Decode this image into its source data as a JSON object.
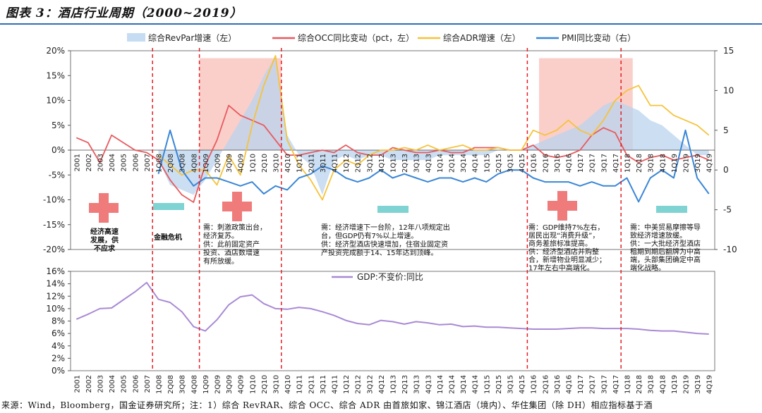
{
  "title": "图表 3：酒店行业周期（2000~2019）",
  "source": "来源：Wind，Bloomberg，国金证券研究所；注：1）综合 RevRAR、综合 OCC、综合 ADR 由首旅如家、锦江酒店（境内）、华住集团（除 DH）相应指标基于酒",
  "colors": {
    "revpar": "#c6dcf2",
    "occ": "#e8595e",
    "adr": "#f5c33b",
    "pmi": "#3a86d6",
    "gdp": "#a98ad4",
    "divider": "#e31e24",
    "shade": "#f9c7c1",
    "cross": "#ef7b7b",
    "bar": "#7fd3d3"
  },
  "chart_data": [
    {
      "type": "line",
      "x": [
        "2001",
        "2002",
        "2003",
        "2004",
        "2005",
        "2006",
        "2007",
        "1Q08",
        "2Q08",
        "3Q08",
        "4Q08",
        "1Q09",
        "2Q09",
        "3Q09",
        "4Q09",
        "1Q10",
        "2Q10",
        "3Q10",
        "4Q10",
        "1Q11",
        "2Q11",
        "3Q11",
        "4Q11",
        "1Q12",
        "2Q12",
        "3Q12",
        "4Q12",
        "1Q13",
        "2Q13",
        "3Q13",
        "4Q13",
        "1Q14",
        "2Q14",
        "3Q14",
        "4Q14",
        "1Q15",
        "2Q15",
        "3Q15",
        "4Q15",
        "1Q16",
        "2Q16",
        "3Q16",
        "4Q16",
        "1Q17",
        "2Q17",
        "3Q17",
        "4Q17",
        "1Q18",
        "2Q18",
        "3Q18",
        "4Q18",
        "1Q19",
        "2Q19",
        "3Q19",
        "4Q19"
      ],
      "xlabel_bottom_ticks": [
        "2001",
        "2002",
        "2003",
        "2004",
        "2005",
        "2006",
        "2007",
        "1Q08",
        "2Q08",
        "3Q08",
        "4Q08",
        "1Q09",
        "2Q09",
        "3Q09",
        "4Q09",
        "1Q10",
        "2Q10",
        "3Q10",
        "4Q10",
        "1Q11",
        "2Q11",
        "3Q11",
        "4Q11",
        "1Q12",
        "2Q12",
        "3Q12",
        "4Q12",
        "1Q13",
        "2Q13",
        "3Q13",
        "4Q13",
        "1Q14",
        "2Q14",
        "3Q14",
        "4Q14",
        "1Q15",
        "2Q15",
        "3Q15",
        "4Q15",
        "1Q16",
        "2Q16",
        "3Q16",
        "4Q16",
        "1Q17",
        "2Q17",
        "3Q17",
        "4Q17",
        "1Q18",
        "2Q18",
        "3Q18",
        "4Q18",
        "1Q19",
        "2Q19",
        "3Q19",
        "4Q19"
      ],
      "ylim_left": [
        -20,
        20
      ],
      "yticks_left": [
        "20%",
        "15%",
        "10%",
        "5%",
        "0%",
        "-5%",
        "-10%",
        "-15%",
        "-20%"
      ],
      "ylim_right": [
        -10,
        15
      ],
      "yticks_right": [
        "15",
        "10",
        "5",
        "0",
        "-5",
        "-10"
      ],
      "series": [
        {
          "name": "综合RevPar增速（左）",
          "axis": "left",
          "style": "area",
          "values": [
            null,
            null,
            null,
            null,
            null,
            null,
            null,
            -2,
            -7,
            -8,
            -9,
            -6,
            -2,
            2,
            6,
            10,
            15,
            19,
            3,
            -1,
            -3,
            -9,
            -2,
            -1,
            -2,
            -1,
            -1,
            -2,
            -2,
            -2,
            -2,
            -1,
            -1,
            -1,
            -1,
            -1,
            0,
            0,
            0,
            1,
            2,
            3,
            4,
            5,
            7,
            9,
            10,
            9,
            8,
            6,
            5,
            3,
            1,
            -1,
            -1
          ]
        },
        {
          "name": "综合OCC同比变动（pct，左）",
          "axis": "left",
          "style": "line",
          "values": [
            2.5,
            1.5,
            -2.5,
            3,
            1.5,
            0,
            -0.5,
            -2,
            -6,
            -9,
            -10.5,
            -3,
            2,
            9,
            7,
            6,
            5,
            2,
            -1,
            -1,
            -0.5,
            0,
            -0.5,
            1,
            -0.5,
            -1,
            -1,
            0.5,
            0,
            -0.5,
            -0.5,
            0,
            -0.5,
            -0.5,
            0.5,
            0.5,
            0.5,
            0,
            0,
            1,
            -1,
            -1.5,
            -1,
            0,
            3,
            4.5,
            3.5,
            -1,
            -2.5,
            -1.5,
            -1,
            -2,
            -1.5,
            -1,
            -2
          ]
        },
        {
          "name": "综合ADR增速（左）",
          "axis": "left",
          "style": "line",
          "values": [
            null,
            null,
            null,
            null,
            null,
            null,
            null,
            -1,
            -3,
            -5,
            -4,
            -4,
            -7,
            -1,
            -5,
            5,
            13,
            19,
            2,
            -3,
            -6,
            -10,
            -4,
            -2,
            -3,
            -1,
            0,
            0,
            0.5,
            0,
            1,
            0,
            0.5,
            1,
            0,
            0,
            0.5,
            0,
            0,
            4,
            3,
            4,
            6,
            4,
            3,
            6,
            10,
            12,
            13,
            9,
            9,
            7,
            6,
            5,
            3
          ]
        },
        {
          "name": "PMI同比变动（右）",
          "axis": "right",
          "style": "line",
          "values": [
            null,
            null,
            null,
            null,
            null,
            null,
            null,
            -0.5,
            5,
            0,
            -2,
            -1,
            -1,
            -1.5,
            -2,
            -1.5,
            -3,
            -2,
            -2.5,
            -1,
            -0.5,
            0.5,
            0,
            -1,
            -1.5,
            -1,
            0,
            -1,
            -0.5,
            -1,
            -1.5,
            -1,
            -1,
            -1.5,
            -1,
            -1.5,
            -0.5,
            0,
            0,
            -1,
            -1.5,
            -1.5,
            -1.5,
            -2,
            -1.5,
            -2,
            -2,
            -1,
            -4,
            -1,
            0,
            -1,
            5,
            -1,
            -3
          ]
        }
      ],
      "regions": [
        {
          "label": "1Q09-3Q10",
          "from": "1Q09",
          "to": "3Q10"
        },
        {
          "label": "2Q16-1Q18",
          "from": "2Q16",
          "to": "1Q18"
        }
      ],
      "dividers_after": [
        "2007",
        "4Q08",
        "3Q10",
        "4Q15",
        "4Q17"
      ],
      "annotations": [
        {
          "id": "a1",
          "lines": [
            "经济高速",
            "发展，供",
            "不应求"
          ]
        },
        {
          "id": "a2",
          "lines": [
            "金融危机"
          ]
        },
        {
          "id": "a3",
          "lines": [
            "需：刺激政策出台，",
            "经济复苏。",
            "供：此前固定资产",
            "投资、酒店数增速",
            "有所放缓。"
          ]
        },
        {
          "id": "a4",
          "lines": [
            "需：经济增速下一台阶，12年八项规定出",
            "台，但GDP仍有7%以上增速。",
            "供：经济型酒店快速增加，住宿业固定资",
            "产投资完成额于14、15年达到顶峰。"
          ]
        },
        {
          "id": "a5",
          "lines": [
            "需：GDP维持7%左右，",
            "居民出现“消费升级”，",
            "商务差旅标准提高。",
            "供：经济型酒店并购整",
            "合，新增物业明显减少；",
            "17年左右中高端化。"
          ]
        },
        {
          "id": "a6",
          "lines": [
            "需：中美贸易摩擦等导",
            "致经济增速放缓。",
            "供：一大批经济型酒店",
            "租期到期后翻牌为中高",
            "端，头部集团确定中高",
            "端化战略。"
          ]
        }
      ]
    },
    {
      "type": "line",
      "x": [
        "2001",
        "2002",
        "2003",
        "2004",
        "2005",
        "2006",
        "2007",
        "1Q08",
        "2Q08",
        "3Q08",
        "4Q08",
        "1Q09",
        "2Q09",
        "3Q09",
        "4Q09",
        "1Q10",
        "2Q10",
        "3Q10",
        "4Q10",
        "1Q11",
        "2Q11",
        "3Q11",
        "4Q11",
        "1Q12",
        "2Q12",
        "3Q12",
        "4Q12",
        "1Q13",
        "2Q13",
        "3Q13",
        "4Q13",
        "1Q14",
        "2Q14",
        "3Q14",
        "4Q14",
        "1Q15",
        "2Q15",
        "3Q15",
        "4Q15",
        "1Q16",
        "2Q16",
        "3Q16",
        "4Q16",
        "1Q17",
        "2Q17",
        "3Q17",
        "4Q17",
        "1Q18",
        "2Q18",
        "3Q18",
        "4Q18",
        "1Q19",
        "2Q19",
        "3Q19",
        "4Q19"
      ],
      "ylim": [
        0,
        16
      ],
      "yticks": [
        "16%",
        "14%",
        "12%",
        "10%",
        "8%",
        "6%",
        "4%",
        "2%",
        "0%"
      ],
      "series": [
        {
          "name": "GDP:不变价:同比",
          "values": [
            8.3,
            9.1,
            10.0,
            10.1,
            11.4,
            12.7,
            14.2,
            11.5,
            11.0,
            9.5,
            7.1,
            6.4,
            8.2,
            10.6,
            11.9,
            12.2,
            10.8,
            10.0,
            9.9,
            10.2,
            10.0,
            9.5,
            8.9,
            8.1,
            7.6,
            7.4,
            8.1,
            7.9,
            7.5,
            7.9,
            7.7,
            7.4,
            7.5,
            7.1,
            7.2,
            7.0,
            7.0,
            6.9,
            6.8,
            6.7,
            6.7,
            6.7,
            6.8,
            6.9,
            6.9,
            6.8,
            6.8,
            6.8,
            6.7,
            6.5,
            6.4,
            6.4,
            6.2,
            6.0,
            5.9
          ]
        }
      ]
    }
  ]
}
